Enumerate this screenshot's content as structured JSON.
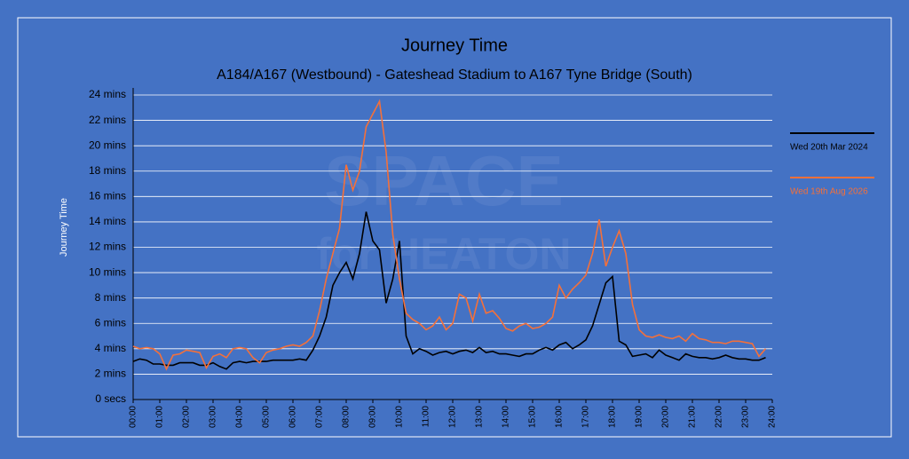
{
  "chart_data": {
    "type": "line",
    "title": "Journey Time",
    "subtitle": "A184/A167 (Westbound) - Gateshead Stadium to A167 Tyne Bridge (South)",
    "y_label": "Journey Time",
    "watermark": [
      "SPACE",
      "for HEATON"
    ],
    "x": [
      0,
      0.25,
      0.5,
      0.75,
      1,
      1.25,
      1.5,
      1.75,
      2,
      2.25,
      2.5,
      2.75,
      3,
      3.25,
      3.5,
      3.75,
      4,
      4.25,
      4.5,
      4.75,
      5,
      5.25,
      5.5,
      5.75,
      6,
      6.25,
      6.5,
      6.75,
      7,
      7.25,
      7.5,
      7.75,
      8,
      8.25,
      8.5,
      8.75,
      9,
      9.25,
      9.5,
      9.75,
      10,
      10.25,
      10.5,
      10.75,
      11,
      11.25,
      11.5,
      11.75,
      12,
      12.25,
      12.5,
      12.75,
      13,
      13.25,
      13.5,
      13.75,
      14,
      14.25,
      14.5,
      14.75,
      15,
      15.25,
      15.5,
      15.75,
      16,
      16.25,
      16.5,
      16.75,
      17,
      17.25,
      17.5,
      17.75,
      18,
      18.25,
      18.5,
      18.75,
      19,
      19.25,
      19.5,
      19.75,
      20,
      20.25,
      20.5,
      20.75,
      21,
      21.25,
      21.5,
      21.75,
      22,
      22.25,
      22.5,
      22.75,
      23,
      23.25,
      23.5,
      23.75
    ],
    "series": [
      {
        "name": "Wed 20th Mar 2024",
        "color": "#000000",
        "values": [
          3.0,
          3.2,
          3.1,
          2.8,
          2.8,
          2.7,
          2.7,
          2.9,
          2.9,
          2.9,
          2.7,
          2.7,
          2.9,
          2.6,
          2.4,
          2.9,
          3.0,
          2.9,
          3.0,
          3.0,
          3.0,
          3.1,
          3.1,
          3.1,
          3.1,
          3.2,
          3.1,
          3.9,
          5.0,
          6.5,
          9.0,
          10.0,
          10.8,
          9.5,
          11.5,
          14.8,
          12.5,
          11.8,
          7.6,
          9.5,
          12.5,
          5.0,
          3.6,
          4.0,
          3.8,
          3.5,
          3.7,
          3.8,
          3.6,
          3.8,
          3.9,
          3.7,
          4.1,
          3.7,
          3.8,
          3.6,
          3.6,
          3.5,
          3.4,
          3.6,
          3.6,
          3.9,
          4.1,
          3.9,
          4.3,
          4.5,
          4.0,
          4.3,
          4.7,
          5.8,
          7.5,
          9.2,
          9.7,
          4.6,
          4.3,
          3.4,
          3.5,
          3.6,
          3.3,
          3.9,
          3.5,
          3.3,
          3.1,
          3.6,
          3.4,
          3.3,
          3.3,
          3.2,
          3.3,
          3.5,
          3.3,
          3.2,
          3.2,
          3.1,
          3.1,
          3.3
        ]
      },
      {
        "name": "Wed 19th Aug 2026",
        "color": "#f4703a",
        "values": [
          4.2,
          4.0,
          4.1,
          4.0,
          3.6,
          2.4,
          3.5,
          3.6,
          3.9,
          3.8,
          3.7,
          2.5,
          3.4,
          3.6,
          3.3,
          4.0,
          4.1,
          4.0,
          3.3,
          2.9,
          3.7,
          3.9,
          4.0,
          4.2,
          4.3,
          4.2,
          4.5,
          5.0,
          7.0,
          9.5,
          11.5,
          13.5,
          18.5,
          16.5,
          18.0,
          21.5,
          22.5,
          23.5,
          19.5,
          13.0,
          9.5,
          6.8,
          6.3,
          6.0,
          5.5,
          5.8,
          6.5,
          5.5,
          6.0,
          8.3,
          8.0,
          6.2,
          8.3,
          6.8,
          7.0,
          6.4,
          5.6,
          5.4,
          5.8,
          6.0,
          5.6,
          5.7,
          6.0,
          6.5,
          9.0,
          8.0,
          8.7,
          9.2,
          9.8,
          11.5,
          14.2,
          10.5,
          12.0,
          13.3,
          11.5,
          7.5,
          5.5,
          5.0,
          4.9,
          5.1,
          4.9,
          4.8,
          5.0,
          4.6,
          5.2,
          4.8,
          4.7,
          4.5,
          4.5,
          4.4,
          4.6,
          4.6,
          4.5,
          4.4,
          3.4,
          4.0
        ]
      }
    ],
    "xlim": [
      0,
      24
    ],
    "xticks": [
      {
        "value": 0,
        "label": "00:00"
      },
      {
        "value": 1,
        "label": "01:00"
      },
      {
        "value": 2,
        "label": "02:00"
      },
      {
        "value": 3,
        "label": "03:00"
      },
      {
        "value": 4,
        "label": "04:00"
      },
      {
        "value": 5,
        "label": "05:00"
      },
      {
        "value": 6,
        "label": "06:00"
      },
      {
        "value": 7,
        "label": "07:00"
      },
      {
        "value": 8,
        "label": "08:00"
      },
      {
        "value": 9,
        "label": "09:00"
      },
      {
        "value": 10,
        "label": "10:00"
      },
      {
        "value": 11,
        "label": "11:00"
      },
      {
        "value": 12,
        "label": "12:00"
      },
      {
        "value": 13,
        "label": "13:00"
      },
      {
        "value": 14,
        "label": "14:00"
      },
      {
        "value": 15,
        "label": "15:00"
      },
      {
        "value": 16,
        "label": "16:00"
      },
      {
        "value": 17,
        "label": "17:00"
      },
      {
        "value": 18,
        "label": "18:00"
      },
      {
        "value": 19,
        "label": "19:00"
      },
      {
        "value": 20,
        "label": "20:00"
      },
      {
        "value": 21,
        "label": "21:00"
      },
      {
        "value": 22,
        "label": "22:00"
      },
      {
        "value": 23,
        "label": "23:00"
      },
      {
        "value": 24,
        "label": "24:00"
      }
    ],
    "ylim": [
      0,
      24
    ],
    "yticks": [
      {
        "value": 0,
        "label": "0 secs"
      },
      {
        "value": 2,
        "label": "2 mins"
      },
      {
        "value": 4,
        "label": "4 mins"
      },
      {
        "value": 6,
        "label": "6 mins"
      },
      {
        "value": 8,
        "label": "8 mins"
      },
      {
        "value": 10,
        "label": "10 mins"
      },
      {
        "value": 12,
        "label": "12 mins"
      },
      {
        "value": 14,
        "label": "14 mins"
      },
      {
        "value": 16,
        "label": "16 mins"
      },
      {
        "value": 18,
        "label": "18 mins"
      },
      {
        "value": 20,
        "label": "20 mins"
      },
      {
        "value": 22,
        "label": "22 mins"
      },
      {
        "value": 24,
        "label": "24 mins"
      }
    ],
    "grid": true,
    "legend": "right"
  }
}
